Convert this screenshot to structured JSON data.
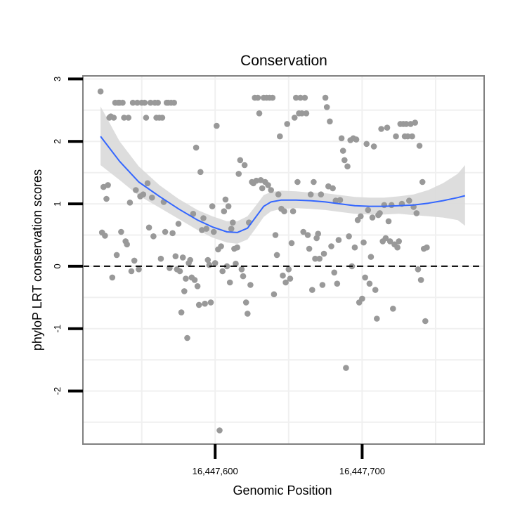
{
  "chart_data": {
    "type": "scatter",
    "title": "Conservation",
    "xlabel": "Genomic Position",
    "ylabel": "phyloP LRT conservation scores",
    "xlim": [
      16447510,
      16447783
    ],
    "ylim": [
      -2.85,
      3.05
    ],
    "x_ticks": [
      {
        "value": 16447600,
        "label": "16,447,600"
      },
      {
        "value": 16447700,
        "label": "16,447,700"
      }
    ],
    "y_ticks": [
      {
        "value": -2,
        "label": "-2"
      },
      {
        "value": -1,
        "label": "-1"
      },
      {
        "value": 0,
        "label": "0"
      },
      {
        "value": 1,
        "label": "1"
      },
      {
        "value": 2,
        "label": "2"
      },
      {
        "value": 3,
        "label": "3"
      }
    ],
    "grid": true,
    "reference_line": {
      "y": 0,
      "style": "dashed"
    },
    "colors": {
      "points": "#999999",
      "smooth": "#3366ff",
      "ribbon": "#d9d9d9",
      "panel_border": "#7f7f7f",
      "grid": "#f0f0f0",
      "reference": "#000000"
    },
    "series": [
      {
        "name": "scores",
        "points": [
          [
            16447522,
            2.8
          ],
          [
            16447523,
            0.54
          ],
          [
            16447524,
            1.27
          ],
          [
            16447525,
            0.49
          ],
          [
            16447526,
            1.08
          ],
          [
            16447527,
            1.3
          ],
          [
            16447528,
            2.38
          ],
          [
            16447529,
            2.4
          ],
          [
            16447530,
            -0.18
          ],
          [
            16447531,
            2.38
          ],
          [
            16447532,
            2.62
          ],
          [
            16447533,
            0.18
          ],
          [
            16447534,
            2.62
          ],
          [
            16447535,
            2.62
          ],
          [
            16447536,
            0.55
          ],
          [
            16447537,
            2.62
          ],
          [
            16447538,
            2.38
          ],
          [
            16447539,
            0.4
          ],
          [
            16447540,
            0.35
          ],
          [
            16447541,
            2.38
          ],
          [
            16447542,
            1.02
          ],
          [
            16447543,
            -0.08
          ],
          [
            16447544,
            2.62
          ],
          [
            16447545,
            0.09
          ],
          [
            16447546,
            1.22
          ],
          [
            16447547,
            2.62
          ],
          [
            16447548,
            -0.05
          ],
          [
            16447549,
            1.12
          ],
          [
            16447550,
            2.62
          ],
          [
            16447551,
            1.15
          ],
          [
            16447552,
            2.62
          ],
          [
            16447553,
            2.38
          ],
          [
            16447554,
            1.33
          ],
          [
            16447555,
            0.62
          ],
          [
            16447556,
            2.62
          ],
          [
            16447557,
            1.1
          ],
          [
            16447558,
            0.48
          ],
          [
            16447559,
            2.62
          ],
          [
            16447560,
            2.38
          ],
          [
            16447561,
            2.62
          ],
          [
            16447562,
            2.38
          ],
          [
            16447563,
            0.12
          ],
          [
            16447564,
            2.38
          ],
          [
            16447565,
            1.03
          ],
          [
            16447566,
            0.55
          ],
          [
            16447567,
            2.62
          ],
          [
            16447568,
            2.62
          ],
          [
            16447569,
            -0.03
          ],
          [
            16447570,
            2.62
          ],
          [
            16447571,
            0.53
          ],
          [
            16447572,
            2.62
          ],
          [
            16447573,
            0.16
          ],
          [
            16447574,
            -0.05
          ],
          [
            16447575,
            0.68
          ],
          [
            16447576,
            -0.08
          ],
          [
            16447577,
            -0.74
          ],
          [
            16447578,
            0.14
          ],
          [
            16447579,
            -0.4
          ],
          [
            16447580,
            -0.2
          ],
          [
            16447581,
            -1.15
          ],
          [
            16447582,
            0.05
          ],
          [
            16447583,
            0.1
          ],
          [
            16447584,
            -0.18
          ],
          [
            16447585,
            0.84
          ],
          [
            16447586,
            -0.22
          ],
          [
            16447587,
            1.9
          ],
          [
            16447588,
            -0.32
          ],
          [
            16447589,
            -0.62
          ],
          [
            16447590,
            1.51
          ],
          [
            16447591,
            0.58
          ],
          [
            16447592,
            0.77
          ],
          [
            16447593,
            -0.6
          ],
          [
            16447594,
            0.6
          ],
          [
            16447595,
            0.1
          ],
          [
            16447596,
            0.02
          ],
          [
            16447597,
            -0.58
          ],
          [
            16447598,
            0.96
          ],
          [
            16447599,
            0.55
          ],
          [
            16447600,
            0.05
          ],
          [
            16447601,
            2.25
          ],
          [
            16447602,
            0.27
          ],
          [
            16447603,
            -2.63
          ],
          [
            16447604,
            0.32
          ],
          [
            16447605,
            -0.08
          ],
          [
            16447606,
            0.88
          ],
          [
            16447607,
            1.07
          ],
          [
            16447608,
            0.0
          ],
          [
            16447609,
            0.96
          ],
          [
            16447610,
            -0.26
          ],
          [
            16447611,
            0.6
          ],
          [
            16447612,
            0.7
          ],
          [
            16447613,
            0.28
          ],
          [
            16447614,
            0.04
          ],
          [
            16447615,
            0.3
          ],
          [
            16447616,
            1.48
          ],
          [
            16447617,
            1.7
          ],
          [
            16447618,
            -0.05
          ],
          [
            16447619,
            -0.16
          ],
          [
            16447620,
            1.62
          ],
          [
            16447621,
            -0.58
          ],
          [
            16447622,
            -0.76
          ],
          [
            16447623,
            0.7
          ],
          [
            16447624,
            -0.3
          ],
          [
            16447625,
            1.35
          ],
          [
            16447626,
            1.33
          ],
          [
            16447627,
            2.7
          ],
          [
            16447628,
            1.37
          ],
          [
            16447629,
            2.7
          ],
          [
            16447630,
            2.45
          ],
          [
            16447631,
            1.38
          ],
          [
            16447632,
            1.25
          ],
          [
            16447633,
            2.7
          ],
          [
            16447634,
            1.35
          ],
          [
            16447635,
            2.7
          ],
          [
            16447636,
            1.3
          ],
          [
            16447637,
            2.7
          ],
          [
            16447638,
            1.22
          ],
          [
            16447639,
            2.7
          ],
          [
            16447640,
            -0.45
          ],
          [
            16447641,
            0.5
          ],
          [
            16447642,
            0.18
          ],
          [
            16447643,
            1.15
          ],
          [
            16447644,
            2.08
          ],
          [
            16447645,
            0.92
          ],
          [
            16447646,
            -0.15
          ],
          [
            16447647,
            0.88
          ],
          [
            16447648,
            -0.26
          ],
          [
            16447649,
            2.28
          ],
          [
            16447650,
            -0.05
          ],
          [
            16447651,
            -0.2
          ],
          [
            16447652,
            0.37
          ],
          [
            16447653,
            0.88
          ],
          [
            16447654,
            2.38
          ],
          [
            16447655,
            2.7
          ],
          [
            16447656,
            1.35
          ],
          [
            16447657,
            2.45
          ],
          [
            16447658,
            2.7
          ],
          [
            16447659,
            2.45
          ],
          [
            16447660,
            0.55
          ],
          [
            16447661,
            2.7
          ],
          [
            16447662,
            2.45
          ],
          [
            16447663,
            0.5
          ],
          [
            16447664,
            0.28
          ],
          [
            16447665,
            1.15
          ],
          [
            16447666,
            -0.38
          ],
          [
            16447667,
            1.35
          ],
          [
            16447668,
            0.12
          ],
          [
            16447669,
            0.45
          ],
          [
            16447670,
            0.52
          ],
          [
            16447671,
            0.12
          ],
          [
            16447672,
            1.15
          ],
          [
            16447673,
            -0.3
          ],
          [
            16447674,
            0.2
          ],
          [
            16447675,
            2.7
          ],
          [
            16447676,
            2.55
          ],
          [
            16447677,
            1.28
          ],
          [
            16447678,
            2.32
          ],
          [
            16447679,
            0.32
          ],
          [
            16447680,
            1.25
          ],
          [
            16447681,
            -0.1
          ],
          [
            16447682,
            1.05
          ],
          [
            16447683,
            -0.28
          ],
          [
            16447684,
            0.42
          ],
          [
            16447685,
            1.06
          ],
          [
            16447686,
            2.05
          ],
          [
            16447687,
            1.85
          ],
          [
            16447688,
            1.7
          ],
          [
            16447689,
            -1.63
          ],
          [
            16447690,
            1.6
          ],
          [
            16447691,
            0.48
          ],
          [
            16447692,
            2.02
          ],
          [
            16447693,
            0.0
          ],
          [
            16447694,
            2.05
          ],
          [
            16447695,
            0.3
          ],
          [
            16447696,
            2.03
          ],
          [
            16447697,
            0.74
          ],
          [
            16447698,
            -0.58
          ],
          [
            16447699,
            0.8
          ],
          [
            16447700,
            -0.52
          ],
          [
            16447701,
            0.38
          ],
          [
            16447702,
            -0.18
          ],
          [
            16447703,
            1.96
          ],
          [
            16447704,
            0.9
          ],
          [
            16447705,
            -0.28
          ],
          [
            16447706,
            0.15
          ],
          [
            16447707,
            0.78
          ],
          [
            16447708,
            1.92
          ],
          [
            16447709,
            -0.38
          ],
          [
            16447710,
            -0.84
          ],
          [
            16447711,
            0.82
          ],
          [
            16447712,
            0.85
          ],
          [
            16447713,
            2.2
          ],
          [
            16447714,
            0.4
          ],
          [
            16447715,
            0.98
          ],
          [
            16447716,
            0.45
          ],
          [
            16447717,
            2.22
          ],
          [
            16447718,
            0.72
          ],
          [
            16447719,
            0.4
          ],
          [
            16447720,
            0.98
          ],
          [
            16447721,
            -0.68
          ],
          [
            16447722,
            0.35
          ],
          [
            16447723,
            2.08
          ],
          [
            16447724,
            0.3
          ],
          [
            16447725,
            0.4
          ],
          [
            16447726,
            2.28
          ],
          [
            16447727,
            1.0
          ],
          [
            16447728,
            2.28
          ],
          [
            16447729,
            2.08
          ],
          [
            16447730,
            2.28
          ],
          [
            16447731,
            2.08
          ],
          [
            16447732,
            1.05
          ],
          [
            16447733,
            2.28
          ],
          [
            16447734,
            2.08
          ],
          [
            16447735,
            0.95
          ],
          [
            16447736,
            2.3
          ],
          [
            16447737,
            0.85
          ],
          [
            16447738,
            -0.05
          ],
          [
            16447739,
            1.93
          ],
          [
            16447740,
            -0.22
          ],
          [
            16447741,
            1.35
          ],
          [
            16447742,
            0.28
          ],
          [
            16447743,
            -0.88
          ],
          [
            16447744,
            0.3
          ]
        ]
      }
    ],
    "smooth": {
      "name": "loess fit",
      "x": [
        16447522,
        16447535,
        16447548,
        16447562,
        16447575,
        16447588,
        16447598,
        16447608,
        16447615,
        16447622,
        16447628,
        16447633,
        16447638,
        16447645,
        16447655,
        16447665,
        16447675,
        16447685,
        16447695,
        16447705,
        16447715,
        16447725,
        16447735,
        16447745,
        16447755,
        16447765,
        16447770
      ],
      "y": [
        2.08,
        1.68,
        1.35,
        1.12,
        0.92,
        0.74,
        0.63,
        0.55,
        0.54,
        0.61,
        0.8,
        0.96,
        1.03,
        1.06,
        1.06,
        1.05,
        1.03,
        1.0,
        0.97,
        0.96,
        0.96,
        0.97,
        0.98,
        1.01,
        1.05,
        1.1,
        1.13
      ],
      "lower": [
        1.62,
        1.38,
        1.13,
        0.94,
        0.76,
        0.58,
        0.46,
        0.38,
        0.36,
        0.43,
        0.62,
        0.79,
        0.88,
        0.92,
        0.93,
        0.92,
        0.9,
        0.87,
        0.84,
        0.83,
        0.83,
        0.84,
        0.82,
        0.8,
        0.78,
        0.74,
        0.65
      ],
      "upper": [
        2.56,
        2.0,
        1.6,
        1.3,
        1.08,
        0.9,
        0.8,
        0.72,
        0.72,
        0.8,
        0.98,
        1.14,
        1.19,
        1.21,
        1.2,
        1.18,
        1.17,
        1.14,
        1.11,
        1.1,
        1.1,
        1.12,
        1.15,
        1.22,
        1.33,
        1.48,
        1.62
      ]
    }
  }
}
